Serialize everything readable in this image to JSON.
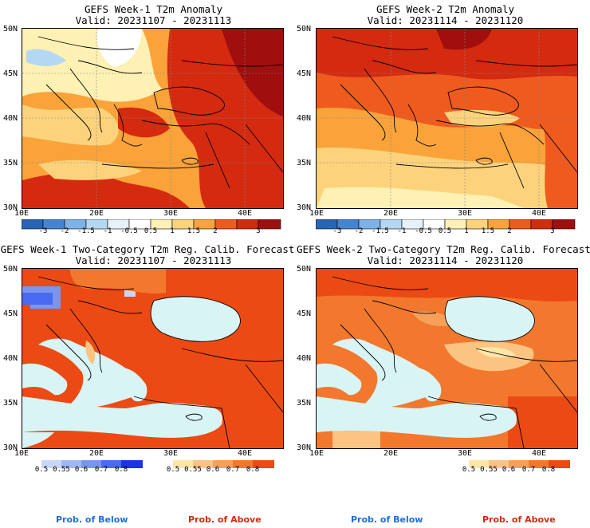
{
  "panels": {
    "p1": {
      "title": "GEFS Week-1 T2m Anomaly",
      "valid": "Valid: 20231107 - 20231113",
      "lat_labels": [
        "50N",
        "45N",
        "40N",
        "35N",
        "30N"
      ],
      "lon_labels": [
        "10E",
        "20E",
        "30E",
        "40E"
      ]
    },
    "p2": {
      "title": "GEFS Week-2 T2m Anomaly",
      "valid": "Valid: 20231114 - 20231120",
      "lat_labels": [
        "50N",
        "45N",
        "40N",
        "35N",
        "30N"
      ],
      "lon_labels": [
        "10E",
        "20E",
        "30E",
        "40E"
      ]
    },
    "p3": {
      "title": "GEFS Week-1 Two-Category T2m Reg. Calib. Forecast",
      "valid": "Valid: 20231107 - 20231113",
      "lat_labels": [
        "50N",
        "45N",
        "40N",
        "35N",
        "30N"
      ],
      "lon_labels": [
        "10E",
        "20E",
        "30E",
        "40E"
      ]
    },
    "p4": {
      "title": "GEFS Week-2 Two-Category T2m Reg. Calib. Forecast",
      "valid": "Valid: 20231114 - 20231120",
      "lat_labels": [
        "50N",
        "45N",
        "40N",
        "35N",
        "30N"
      ],
      "lon_labels": [
        "10E",
        "20E",
        "30E",
        "40E"
      ]
    }
  },
  "anomaly_colorbar": {
    "ticks": [
      "-3",
      "-2",
      "-1.5",
      "-1",
      "-0.5",
      "0.5",
      "1",
      "1.5",
      "2",
      "3"
    ],
    "colors": [
      "#2a64b4",
      "#4684d0",
      "#7cb2e8",
      "#b4d8f4",
      "#e6f2fa",
      "#ffffff",
      "#fff0b4",
      "#fcd37c",
      "#f9a33a",
      "#ef5a1e",
      "#d42a10",
      "#a00e0e"
    ]
  },
  "prob_below_colorbar": {
    "ticks": [
      "0.5",
      "0.55",
      "0.6",
      "0.7",
      "0.8"
    ],
    "colors": [
      "#c8d6f8",
      "#a0b8f4",
      "#7896ee",
      "#4a6af0",
      "#1c32e6"
    ]
  },
  "prob_above_colorbar": {
    "ticks": [
      "0.5",
      "0.55",
      "0.6",
      "0.7",
      "0.8"
    ],
    "colors": [
      "#fde6a8",
      "#fbc482",
      "#f7a05a",
      "#f2782e",
      "#ec4a14"
    ]
  },
  "labels": {
    "prob_below": "Prob. of Below",
    "prob_above": "Prob. of Above"
  },
  "colors": {
    "sea_fill": "#d9f4f4",
    "coast_line": "#000000",
    "grid_line": "#999999"
  }
}
